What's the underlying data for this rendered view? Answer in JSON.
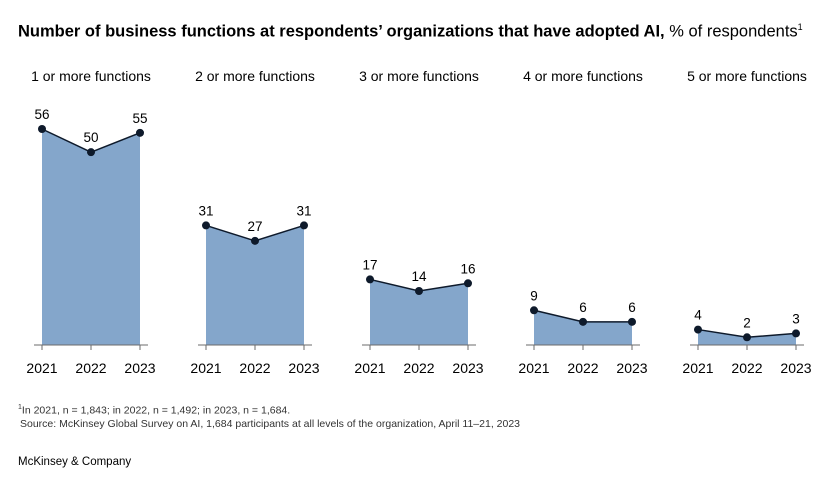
{
  "title": {
    "bold": "Number of business functions at respondents’ organizations that have adopted AI,",
    "unit": "% of respondents",
    "sup": "1"
  },
  "chart_data": {
    "type": "area",
    "x": [
      "2021",
      "2022",
      "2023"
    ],
    "ylim": [
      0,
      56
    ],
    "colors": {
      "fill": "#84a6cb",
      "line": "#0e1a2b",
      "point": "#0e1a2b"
    },
    "panels": [
      {
        "name": "1 or more functions",
        "values": [
          56,
          50,
          55
        ]
      },
      {
        "name": "2 or more functions",
        "values": [
          31,
          27,
          31
        ]
      },
      {
        "name": "3 or more functions",
        "values": [
          17,
          14,
          16
        ]
      },
      {
        "name": "4 or more functions",
        "values": [
          9,
          6,
          6
        ]
      },
      {
        "name": "5 or more functions",
        "values": [
          4,
          2,
          3
        ]
      }
    ]
  },
  "footnote": {
    "sup": "1",
    "line1": "In 2021, n = 1,843; in 2022, n = 1,492; in 2023, n = 1,684.",
    "line2": "Source: McKinsey Global Survey on AI, 1,684 participants at all levels of the organization, April 11–21, 2023"
  },
  "brand": "McKinsey & Company"
}
